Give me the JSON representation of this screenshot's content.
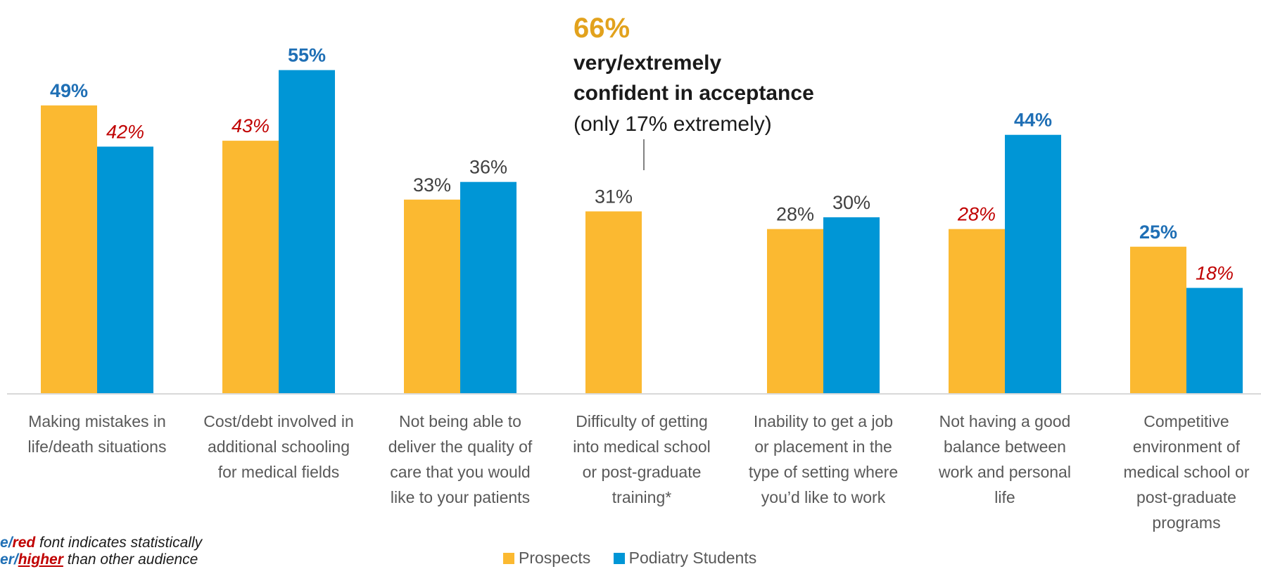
{
  "chart_data": {
    "type": "bar",
    "categories": [
      [
        "Making mistakes in",
        "life/death situations"
      ],
      [
        "Cost/debt involved in",
        "additional schooling",
        "for medical fields"
      ],
      [
        "Not being able to",
        "deliver the quality of",
        "care that you would",
        "like to your patients"
      ],
      [
        "Difficulty of getting",
        "into medical school",
        "or post-graduate",
        "training*"
      ],
      [
        "Inability to get a job",
        "or placement in the",
        "type of setting where",
        "you’d like to work"
      ],
      [
        "Not having a good",
        "balance between",
        "work and personal",
        "life"
      ],
      [
        "Competitive",
        "environment of",
        "medical school or",
        "post-graduate",
        "programs"
      ]
    ],
    "series": [
      {
        "name": "Prospects",
        "color": "#FBB931",
        "values": [
          49,
          43,
          33,
          31,
          28,
          28,
          25
        ],
        "labels": [
          "49%",
          "43%",
          "33%",
          "31%",
          "28%",
          "28%",
          "25%"
        ],
        "label_styles": [
          "blue",
          "red",
          "normal",
          "normal",
          "normal",
          "red",
          "blue"
        ]
      },
      {
        "name": "Podiatry Students",
        "color": "#0096D6",
        "values": [
          42,
          55,
          36,
          null,
          30,
          44,
          18
        ],
        "labels": [
          "42%",
          "55%",
          "36%",
          "",
          "30%",
          "44%",
          "18%"
        ],
        "label_styles": [
          "red",
          "blue",
          "normal",
          "",
          "normal",
          "blue",
          "red"
        ]
      }
    ],
    "ylim": [
      0,
      60
    ],
    "grid": false,
    "legend_position": "bottom",
    "annotation": {
      "percent": "66%",
      "line1": "very/extremely",
      "line2": "confident in acceptance",
      "line3": "(only 17% extremely)"
    }
  },
  "legend": {
    "prospects": "Prospects",
    "students": "Podiatry Students"
  },
  "footnote": {
    "blue_word": "e",
    "slash": "/",
    "red_word": "red",
    "line1_rest": " font indicates statistically",
    "line2_blue": "er",
    "line2_red": "higher",
    "line2_rest": " than other audience"
  },
  "colors": {
    "prospects": "#FBB931",
    "students": "#0096D6",
    "label_blue": "#1F6FB5",
    "label_red": "#C00000",
    "annotation_orange": "#E2A21D"
  }
}
